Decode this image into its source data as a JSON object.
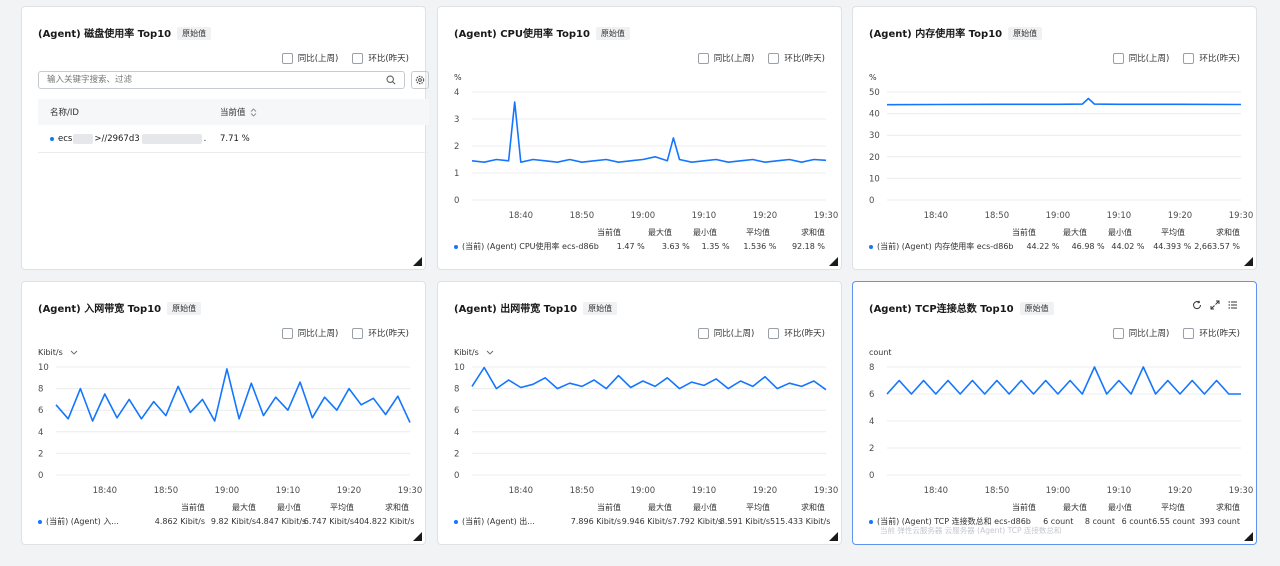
{
  "checkbox_labels": {
    "wow": "同比(上周)",
    "dod": "环比(昨天)"
  },
  "badge": "原始值",
  "stat_headers": [
    "当前值",
    "最大值",
    "最小值",
    "平均值",
    "求和值"
  ],
  "x_ticks": [
    "18:40",
    "18:50",
    "19:00",
    "19:10",
    "19:20",
    "19:30"
  ],
  "disk": {
    "title": "(Agent) 磁盘使用率 Top10",
    "search_placeholder": "输入关键字搜索、过滤",
    "col_name": "名称/ID",
    "col_value": "当前值",
    "row": {
      "prefix": "ecs",
      "middle": ">//2967d3",
      "suffix": ".",
      "value": "7.71 %"
    }
  },
  "cpu": {
    "title": "(Agent) CPU使用率 Top10",
    "unit": "%",
    "legend": "(当前) (Agent) CPU使用率 ecs-d86b",
    "stats": [
      "1.47 %",
      "3.63 %",
      "1.35 %",
      "1.536 %",
      "92.18 %"
    ]
  },
  "mem": {
    "title": "(Agent) 内存使用率 Top10",
    "unit": "%",
    "legend": "(当前) (Agent) 内存使用率 ecs-d86b",
    "stats": [
      "44.22 %",
      "46.98 %",
      "44.02 %",
      "44.393 %",
      "2,663.57 %"
    ]
  },
  "netin": {
    "title": "(Agent) 入网带宽 Top10",
    "unit": "Kibit/s",
    "legend": "(当前) (Agent) 入...",
    "stats": [
      "4.862 Kibit/s",
      "9.82 Kibit/s",
      "4.847 Kibit/s",
      "6.747 Kibit/s",
      "404.822 Kibit/s"
    ]
  },
  "netout": {
    "title": "(Agent) 出网带宽 Top10",
    "unit": "Kibit/s",
    "legend": "(当前) (Agent) 出...",
    "stats": [
      "7.896 Kibit/s",
      "9.946 Kibit/s",
      "7.792 Kibit/s",
      "8.591 Kibit/s",
      "515.433 Kibit/s"
    ]
  },
  "tcp": {
    "title": "(Agent) TCP连接总数 Top10",
    "unit": "count",
    "legend": "(当前) (Agent) TCP 连接数总和 ecs-d86b",
    "stats": [
      "6 count",
      "8 count",
      "6 count",
      "6.55 count",
      "393 count"
    ],
    "overlay_line1": "当前 弹性云服务器 云服务器 (Agent) TCP 连接数总和",
    "overlay_line2": "6 count"
  },
  "chart_data": [
    {
      "type": "line",
      "title": "(Agent) CPU使用率 Top10",
      "ylabel": "%",
      "ylim": [
        0,
        4
      ],
      "yticks": [
        0,
        1,
        2,
        3,
        4
      ],
      "x": [
        "18:32",
        "18:34",
        "18:36",
        "18:38",
        "18:39",
        "18:40",
        "18:42",
        "18:44",
        "18:46",
        "18:48",
        "18:50",
        "18:52",
        "18:54",
        "18:56",
        "18:58",
        "19:00",
        "19:02",
        "19:04",
        "19:05",
        "19:06",
        "19:08",
        "19:10",
        "19:12",
        "19:14",
        "19:16",
        "19:18",
        "19:20",
        "19:22",
        "19:24",
        "19:26",
        "19:28",
        "19:30"
      ],
      "series": [
        {
          "name": "(当前) (Agent) CPU使用率 ecs-d86b",
          "values": [
            1.45,
            1.4,
            1.5,
            1.45,
            3.63,
            1.4,
            1.5,
            1.45,
            1.4,
            1.5,
            1.4,
            1.45,
            1.5,
            1.4,
            1.45,
            1.5,
            1.6,
            1.45,
            2.3,
            1.5,
            1.4,
            1.45,
            1.5,
            1.4,
            1.45,
            1.5,
            1.4,
            1.45,
            1.5,
            1.4,
            1.5,
            1.47
          ]
        }
      ]
    },
    {
      "type": "line",
      "title": "(Agent) 内存使用率 Top10",
      "ylabel": "%",
      "ylim": [
        0,
        50
      ],
      "yticks": [
        0,
        10,
        20,
        30,
        40,
        50
      ],
      "x": [
        "18:32",
        "18:40",
        "18:50",
        "19:00",
        "19:04",
        "19:05",
        "19:06",
        "19:10",
        "19:20",
        "19:30"
      ],
      "series": [
        {
          "name": "(当前) (Agent) 内存使用率 ecs-d86b",
          "values": [
            44.1,
            44.2,
            44.3,
            44.3,
            44.4,
            46.98,
            44.4,
            44.3,
            44.3,
            44.22
          ]
        }
      ]
    },
    {
      "type": "line",
      "title": "(Agent) 入网带宽 Top10",
      "ylabel": "Kibit/s",
      "ylim": [
        0,
        10
      ],
      "yticks": [
        0,
        2,
        4,
        6,
        8,
        10
      ],
      "x": [
        "18:32",
        "18:34",
        "18:36",
        "18:38",
        "18:40",
        "18:42",
        "18:44",
        "18:46",
        "18:48",
        "18:50",
        "18:52",
        "18:54",
        "18:56",
        "18:58",
        "19:00",
        "19:02",
        "19:04",
        "19:06",
        "19:08",
        "19:10",
        "19:12",
        "19:14",
        "19:16",
        "19:18",
        "19:20",
        "19:22",
        "19:24",
        "19:26",
        "19:28",
        "19:30"
      ],
      "series": [
        {
          "name": "(当前) (Agent) 入...",
          "values": [
            6.5,
            5.2,
            8.0,
            5.0,
            7.5,
            5.3,
            7.0,
            5.2,
            6.8,
            5.5,
            8.2,
            5.8,
            7.0,
            5.0,
            9.82,
            5.2,
            8.5,
            5.5,
            7.2,
            6.0,
            8.6,
            5.3,
            7.2,
            6.0,
            8.0,
            6.5,
            7.1,
            5.6,
            7.3,
            4.86
          ]
        }
      ]
    },
    {
      "type": "line",
      "title": "(Agent) 出网带宽 Top10",
      "ylabel": "Kibit/s",
      "ylim": [
        0,
        10
      ],
      "yticks": [
        0,
        2,
        4,
        6,
        8,
        10
      ],
      "x": [
        "18:32",
        "18:34",
        "18:36",
        "18:38",
        "18:40",
        "18:42",
        "18:44",
        "18:46",
        "18:48",
        "18:50",
        "18:52",
        "18:54",
        "18:56",
        "18:58",
        "19:00",
        "19:02",
        "19:04",
        "19:06",
        "19:08",
        "19:10",
        "19:12",
        "19:14",
        "19:16",
        "19:18",
        "19:20",
        "19:22",
        "19:24",
        "19:26",
        "19:28",
        "19:30"
      ],
      "series": [
        {
          "name": "(当前) (Agent) 出...",
          "values": [
            8.2,
            9.95,
            8.0,
            8.8,
            8.1,
            8.4,
            9.0,
            8.0,
            8.5,
            8.2,
            8.8,
            8.0,
            9.2,
            8.1,
            8.7,
            8.2,
            9.0,
            8.0,
            8.6,
            8.3,
            8.9,
            8.0,
            8.7,
            8.2,
            9.1,
            8.0,
            8.5,
            8.2,
            8.7,
            7.9
          ]
        }
      ]
    },
    {
      "type": "line",
      "title": "(Agent) TCP连接总数 Top10",
      "ylabel": "count",
      "ylim": [
        0,
        8
      ],
      "yticks": [
        0,
        2,
        4,
        6,
        8
      ],
      "x": [
        "18:32",
        "18:34",
        "18:36",
        "18:38",
        "18:40",
        "18:42",
        "18:44",
        "18:46",
        "18:48",
        "18:50",
        "18:52",
        "18:54",
        "18:56",
        "18:58",
        "19:00",
        "19:02",
        "19:04",
        "19:06",
        "19:08",
        "19:10",
        "19:12",
        "19:14",
        "19:16",
        "19:18",
        "19:20",
        "19:22",
        "19:24",
        "19:26",
        "19:28",
        "19:30"
      ],
      "series": [
        {
          "name": "(当前) (Agent) TCP 连接数总和 ecs-d86b",
          "values": [
            6,
            7,
            6,
            7,
            6,
            7,
            6,
            7,
            6,
            7,
            6,
            7,
            6,
            7,
            6,
            7,
            6,
            8,
            6,
            7,
            6,
            8,
            6,
            7,
            6,
            7,
            6,
            7,
            6,
            6
          ]
        }
      ]
    }
  ]
}
